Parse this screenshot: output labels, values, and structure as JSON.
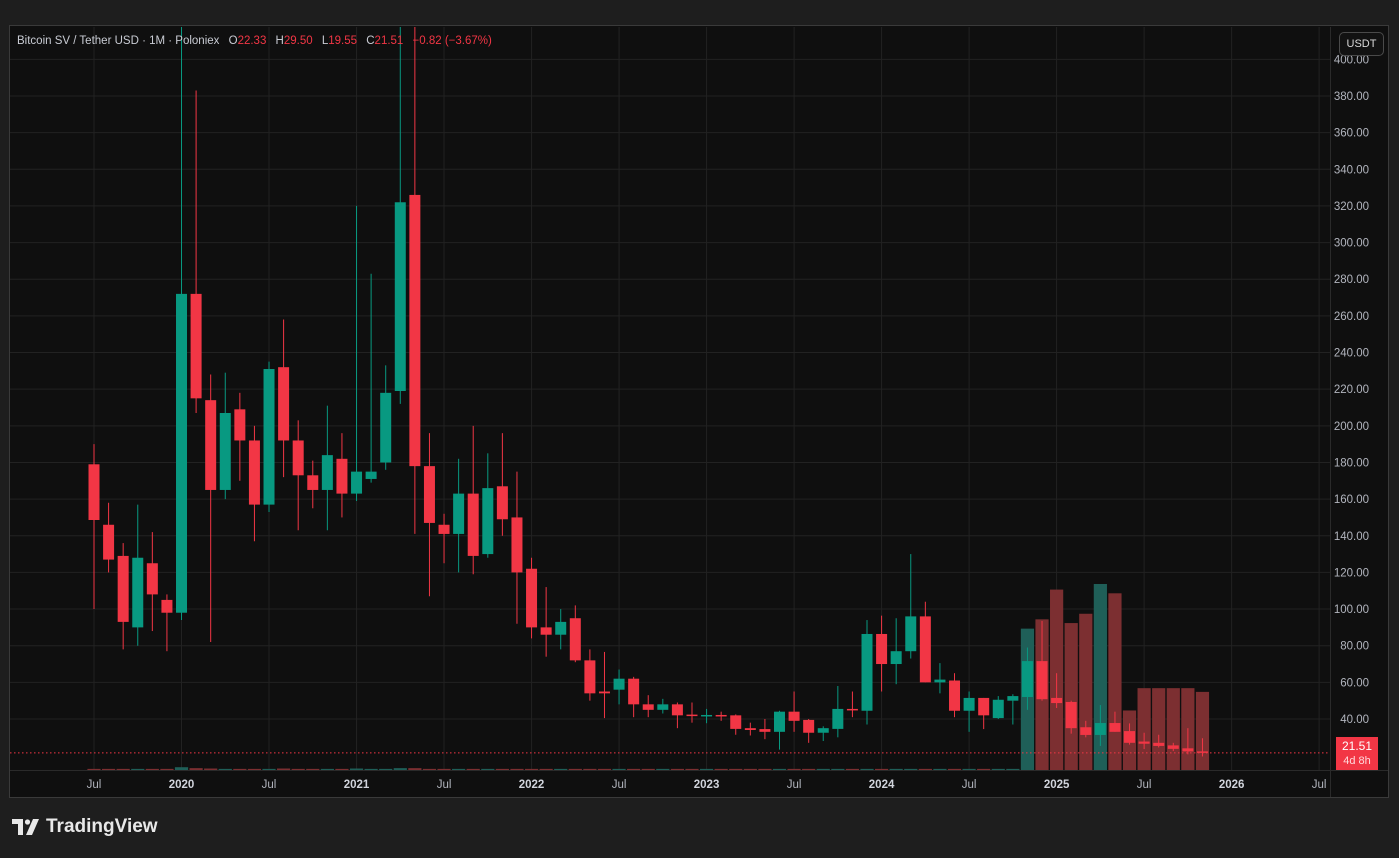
{
  "header": {
    "symbol": "Bitcoin SV / Tether USD · 1M · Poloniex",
    "open_label": "O",
    "open": "22.33",
    "high_label": "H",
    "high": "29.50",
    "low_label": "L",
    "low": "19.55",
    "close_label": "C",
    "close": "21.51",
    "change": "−0.82 (−3.67%)"
  },
  "currency_button": "USDT",
  "last_price": {
    "value": "21.51",
    "countdown": "4d 8h"
  },
  "branding": {
    "logo_text": "TradingView"
  },
  "colors": {
    "up": "#089981",
    "down": "#f23645",
    "vol_up": "#1f5f58",
    "vol_down": "#7c2f31",
    "grid": "#222222",
    "axis_text": "#b2b5be"
  },
  "chart_data": {
    "type": "candlestick",
    "title": "Bitcoin SV / Tether USD · 1M · Poloniex",
    "ylabel": "USDT",
    "ylim": [
      12,
      417
    ],
    "grid": true,
    "y_ticks": [
      "40.00",
      "60.00",
      "80.00",
      "100.00",
      "120.00",
      "140.00",
      "160.00",
      "180.00",
      "200.00",
      "220.00",
      "240.00",
      "260.00",
      "280.00",
      "300.00",
      "320.00",
      "340.00",
      "360.00",
      "380.00",
      "400.00"
    ],
    "x_ticks": [
      {
        "label": "Jul",
        "month_index": 0,
        "bold": false
      },
      {
        "label": "2020",
        "month_index": 6,
        "bold": true
      },
      {
        "label": "Jul",
        "month_index": 12,
        "bold": false
      },
      {
        "label": "2021",
        "month_index": 18,
        "bold": true
      },
      {
        "label": "Jul",
        "month_index": 24,
        "bold": false
      },
      {
        "label": "2022",
        "month_index": 30,
        "bold": true
      },
      {
        "label": "Jul",
        "month_index": 36,
        "bold": false
      },
      {
        "label": "2023",
        "month_index": 42,
        "bold": true
      },
      {
        "label": "Jul",
        "month_index": 48,
        "bold": false
      },
      {
        "label": "2024",
        "month_index": 54,
        "bold": true
      },
      {
        "label": "Jul",
        "month_index": 60,
        "bold": false
      },
      {
        "label": "2025",
        "month_index": 66,
        "bold": true
      },
      {
        "label": "Jul",
        "month_index": 72,
        "bold": false
      },
      {
        "label": "2026",
        "month_index": 78,
        "bold": true
      },
      {
        "label": "Jul",
        "month_index": 84,
        "bold": false
      }
    ],
    "start_month": "2019-07",
    "ohlc": [
      [
        179,
        190,
        100,
        148.6
      ],
      [
        146,
        158,
        120,
        127
      ],
      [
        129,
        136,
        78,
        93
      ],
      [
        90,
        157,
        80,
        128
      ],
      [
        125,
        142,
        88,
        108
      ],
      [
        105,
        108,
        77,
        98
      ],
      [
        98,
        420,
        94,
        272
      ],
      [
        272,
        383,
        207,
        215
      ],
      [
        214,
        228,
        82,
        165
      ],
      [
        165,
        229,
        160,
        207
      ],
      [
        209,
        218,
        170,
        192
      ],
      [
        192,
        200,
        137,
        157
      ],
      [
        157,
        235,
        153,
        231
      ],
      [
        232,
        258,
        172,
        192
      ],
      [
        192,
        203,
        143,
        173
      ],
      [
        173,
        181,
        155,
        165
      ],
      [
        165,
        211,
        143,
        184
      ],
      [
        182,
        196,
        150,
        163
      ],
      [
        163,
        320,
        159,
        175
      ],
      [
        171,
        283,
        169,
        175
      ],
      [
        180,
        233,
        176,
        218
      ],
      [
        219,
        450,
        212,
        322
      ],
      [
        326,
        450,
        141,
        178
      ],
      [
        178,
        196,
        107,
        147
      ],
      [
        146,
        152,
        125,
        141
      ],
      [
        141,
        182,
        120,
        163
      ],
      [
        163,
        200,
        119,
        129
      ],
      [
        130,
        185,
        128,
        166
      ],
      [
        167,
        196,
        140,
        149
      ],
      [
        150,
        175,
        92,
        120
      ],
      [
        122,
        128,
        84,
        90
      ],
      [
        90,
        112,
        74,
        86
      ],
      [
        86,
        100,
        78,
        93
      ],
      [
        95,
        102,
        71,
        72
      ],
      [
        72,
        78,
        50,
        54
      ],
      [
        55,
        76.6,
        40.5,
        54
      ],
      [
        56,
        67,
        48,
        62
      ],
      [
        62,
        63,
        41,
        48
      ],
      [
        48,
        53,
        41,
        45
      ],
      [
        45,
        51,
        43,
        48
      ],
      [
        48,
        49,
        35,
        42
      ],
      [
        42.4,
        49,
        38,
        42
      ],
      [
        41.8,
        45.5,
        37.7,
        42.2
      ],
      [
        42.2,
        44,
        39,
        41.9
      ],
      [
        42,
        42.5,
        31.4,
        34.6
      ],
      [
        35,
        38,
        31,
        34
      ],
      [
        34.5,
        40,
        29,
        33
      ],
      [
        33,
        44.5,
        23.3,
        44
      ],
      [
        44,
        55,
        33,
        39
      ],
      [
        39.5,
        40,
        27,
        32.5
      ],
      [
        32.5,
        36,
        28,
        35
      ],
      [
        34.6,
        58,
        30,
        45.5
      ],
      [
        45.5,
        55,
        41,
        45
      ],
      [
        44.5,
        94,
        37,
        86.4
      ],
      [
        86.4,
        96.4,
        55,
        70
      ],
      [
        70,
        95,
        59,
        77
      ],
      [
        77,
        130,
        73,
        96
      ],
      [
        96,
        104,
        60,
        60
      ],
      [
        60,
        70.5,
        54,
        61.5
      ],
      [
        61,
        65,
        41,
        44.5
      ],
      [
        44.5,
        55,
        33,
        51.5
      ],
      [
        51.5,
        51.5,
        34.5,
        42
      ],
      [
        40.5,
        52.5,
        40,
        50.5
      ],
      [
        50,
        53.5,
        37,
        52.5
      ],
      [
        52,
        79,
        45,
        71.6
      ],
      [
        71.6,
        93.5,
        50,
        50.8
      ],
      [
        51.5,
        65,
        46,
        48.7
      ],
      [
        49.3,
        50,
        32,
        35
      ],
      [
        35.5,
        39,
        30,
        31.3
      ],
      [
        31.3,
        47.6,
        25.3,
        37.8
      ],
      [
        37.8,
        44,
        33,
        33
      ],
      [
        33.4,
        37.6,
        26,
        27
      ],
      [
        27.7,
        32.5,
        23.6,
        26.5
      ],
      [
        27,
        31.4,
        24.5,
        25.3
      ],
      [
        25.6,
        27,
        22.5,
        23.7
      ],
      [
        24,
        35,
        20.7,
        22.3
      ],
      [
        22.33,
        29.5,
        19.55,
        21.51
      ]
    ],
    "volume_relative": [
      0.6,
      0.6,
      0.6,
      0.6,
      0.6,
      0.6,
      1.5,
      1,
      0.8,
      0.6,
      0.6,
      0.6,
      0.6,
      0.8,
      0.6,
      0.6,
      0.6,
      0.6,
      0.8,
      0.6,
      0.6,
      1,
      1,
      0.6,
      0.6,
      0.6,
      0.6,
      0.6,
      0.6,
      0.6,
      0.6,
      0.6,
      0.6,
      0.6,
      0.6,
      0.6,
      0.6,
      0.6,
      0.6,
      0.6,
      0.6,
      0.6,
      0.6,
      0.6,
      0.6,
      0.6,
      0.6,
      0.6,
      0.6,
      0.6,
      0.6,
      0.6,
      0.6,
      0.6,
      0.6,
      0.6,
      0.6,
      0.6,
      0.6,
      0.6,
      0.6,
      0.6,
      0.6,
      0.6,
      76,
      81,
      97,
      79,
      84,
      100,
      95,
      32,
      44,
      44,
      44,
      44,
      42
    ]
  }
}
